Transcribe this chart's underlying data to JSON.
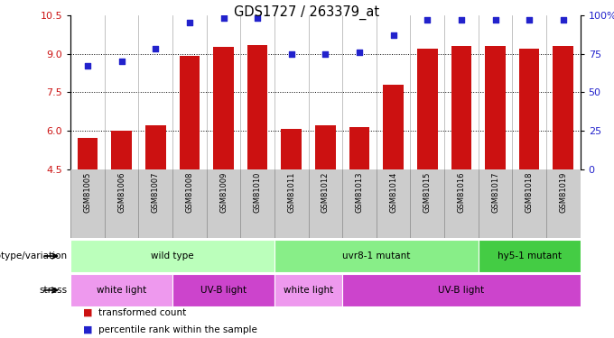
{
  "title": "GDS1727 / 263379_at",
  "samples": [
    "GSM81005",
    "GSM81006",
    "GSM81007",
    "GSM81008",
    "GSM81009",
    "GSM81010",
    "GSM81011",
    "GSM81012",
    "GSM81013",
    "GSM81014",
    "GSM81015",
    "GSM81016",
    "GSM81017",
    "GSM81018",
    "GSM81019"
  ],
  "bar_values": [
    5.7,
    6.0,
    6.2,
    8.9,
    9.25,
    9.35,
    6.05,
    6.2,
    6.15,
    7.8,
    9.2,
    9.3,
    9.3,
    9.2,
    9.3
  ],
  "dot_values": [
    67,
    70,
    78,
    95,
    98,
    98,
    75,
    75,
    76,
    87,
    97,
    97,
    97,
    97,
    97
  ],
  "ylim_left": [
    4.5,
    10.5
  ],
  "ylim_right": [
    0,
    100
  ],
  "yticks_left": [
    4.5,
    6.0,
    7.5,
    9.0,
    10.5
  ],
  "yticks_right": [
    0,
    25,
    50,
    75,
    100
  ],
  "bar_color": "#cc1111",
  "dot_color": "#2222cc",
  "background_color": "#ffffff",
  "grid_color": "#000000",
  "tick_bg_color": "#cccccc",
  "genotype_groups": [
    {
      "label": "wild type",
      "start": 0,
      "end": 5,
      "color": "#bbffbb"
    },
    {
      "label": "uvr8-1 mutant",
      "start": 6,
      "end": 11,
      "color": "#88ee88"
    },
    {
      "label": "hy5-1 mutant",
      "start": 12,
      "end": 14,
      "color": "#44cc44"
    }
  ],
  "stress_groups": [
    {
      "label": "white light",
      "start": 0,
      "end": 2,
      "color": "#ee99ee"
    },
    {
      "label": "UV-B light",
      "start": 3,
      "end": 5,
      "color": "#cc44cc"
    },
    {
      "label": "white light",
      "start": 6,
      "end": 7,
      "color": "#ee99ee"
    },
    {
      "label": "UV-B light",
      "start": 8,
      "end": 14,
      "color": "#cc44cc"
    }
  ],
  "legend_bar_label": "transformed count",
  "legend_dot_label": "percentile rank within the sample",
  "geno_label": "genotype/variation",
  "stress_label": "stress"
}
